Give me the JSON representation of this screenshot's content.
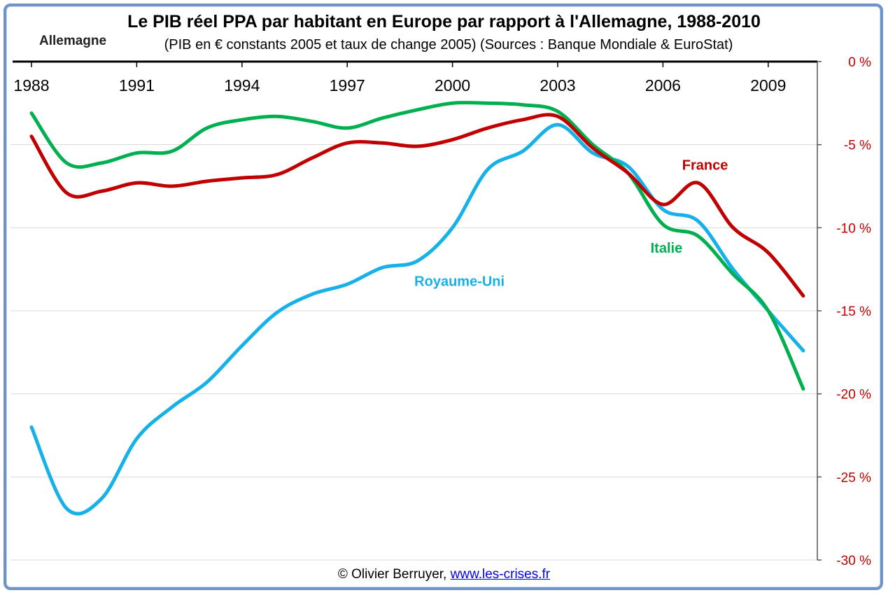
{
  "header": {
    "title": "Le PIB réel PPA par habitant en Europe par rapport à l'Allemagne, 1988-2010",
    "subtitle": "(PIB en € constants 2005 et taux de change 2005) (Sources : Banque Mondiale & EuroStat)",
    "reference_label": "Allemagne"
  },
  "footer": {
    "credit": "© Olivier Berruyer,",
    "link": "www.les-crises.fr"
  },
  "chart_data": {
    "type": "line",
    "x": [
      1988,
      1989,
      1990,
      1991,
      1992,
      1993,
      1994,
      1995,
      1996,
      1997,
      1998,
      1999,
      2000,
      2001,
      2002,
      2003,
      2004,
      2005,
      2006,
      2007,
      2008,
      2009,
      2010
    ],
    "xticks": [
      "1988",
      "1991",
      "1994",
      "1997",
      "2000",
      "2003",
      "2006",
      "2009"
    ],
    "xlim": [
      1988,
      2010.4
    ],
    "ylim": [
      -30,
      0
    ],
    "yticks": [
      0,
      -5,
      -10,
      -15,
      -20,
      -25,
      -30
    ],
    "ytick_labels": [
      "0 %",
      "-5 %",
      "-10 %",
      "-15 %",
      "-20 %",
      "-25 %",
      "-30 %"
    ],
    "grid": true,
    "x_axis_position": "top",
    "y_axis_position": "right",
    "series": [
      {
        "name": "France",
        "color": "#c00000",
        "values": [
          -4.5,
          -7.9,
          -7.8,
          -7.3,
          -7.5,
          -7.2,
          -7.0,
          -6.8,
          -5.8,
          -4.9,
          -4.9,
          -5.1,
          -4.7,
          -4.0,
          -3.5,
          -3.3,
          -5.2,
          -6.7,
          -8.6,
          -7.3,
          -10.0,
          -11.5,
          -14.1
        ]
      },
      {
        "name": "Italie",
        "color": "#00b050",
        "values": [
          -3.1,
          -6.1,
          -6.1,
          -5.5,
          -5.4,
          -4.0,
          -3.5,
          -3.3,
          -3.6,
          -4.0,
          -3.4,
          -2.9,
          -2.5,
          -2.5,
          -2.6,
          -3.0,
          -5.0,
          -6.7,
          -9.8,
          -10.5,
          -12.8,
          -15.0,
          -19.7
        ]
      },
      {
        "name": "Royaume-Uni",
        "color": "#15b1e8",
        "values": [
          -22.0,
          -26.9,
          -26.3,
          -22.7,
          -20.8,
          -19.3,
          -17.1,
          -15.1,
          -14.0,
          -13.4,
          -12.4,
          -12.0,
          -10.0,
          -6.5,
          -5.4,
          -3.8,
          -5.5,
          -6.3,
          -8.9,
          -9.6,
          -12.5,
          -15.0,
          -17.4
        ]
      }
    ],
    "series_label_positions_in_data": [
      {
        "name": "France",
        "x": 2007.2,
        "y": -6.5
      },
      {
        "name": "Italie",
        "x": 2006.1,
        "y": -11.5
      },
      {
        "name": "Royaume-Uni",
        "x": 2000.2,
        "y": -13.5
      }
    ]
  }
}
